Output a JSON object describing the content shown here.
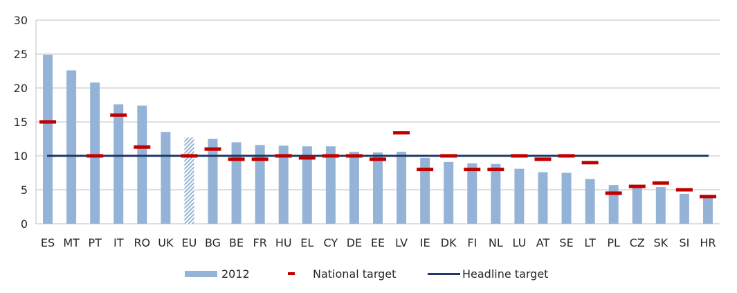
{
  "chart_data": {
    "type": "bar",
    "title": "",
    "xlabel": "",
    "ylabel": "",
    "ylim": [
      0,
      30
    ],
    "yticks": [
      0,
      5,
      10,
      15,
      20,
      25,
      30
    ],
    "grid": true,
    "legend_position": "bottom",
    "categories": [
      "ES",
      "MT",
      "PT",
      "IT",
      "RO",
      "UK",
      "EU",
      "BG",
      "BE",
      "FR",
      "HU",
      "EL",
      "CY",
      "DE",
      "EE",
      "LV",
      "IE",
      "DK",
      "FI",
      "NL",
      "LU",
      "AT",
      "SE",
      "LT",
      "PL",
      "CZ",
      "SK",
      "SI",
      "HR"
    ],
    "series": [
      {
        "name": "2012",
        "kind": "bar",
        "color": "#95b3d7",
        "highlight": {
          "category": "EU",
          "pattern": "hatched"
        },
        "values": [
          24.9,
          22.6,
          20.8,
          17.6,
          17.4,
          13.5,
          12.7,
          12.5,
          12.0,
          11.6,
          11.5,
          11.4,
          11.4,
          10.6,
          10.5,
          10.6,
          9.7,
          9.1,
          8.9,
          8.8,
          8.1,
          7.6,
          7.5,
          6.6,
          5.7,
          5.5,
          5.4,
          4.4,
          4.2
        ]
      },
      {
        "name": "National target",
        "kind": "marker",
        "color": "#c00000",
        "values": [
          15,
          null,
          10,
          16,
          11.3,
          null,
          10,
          11,
          9.5,
          9.5,
          10,
          9.7,
          10,
          10,
          9.5,
          13.4,
          8,
          10,
          8,
          8,
          10,
          9.5,
          10,
          9,
          4.5,
          5.5,
          6,
          5,
          4
        ]
      },
      {
        "name": "Headline target",
        "kind": "line",
        "color": "#1f3864",
        "value": 10
      }
    ]
  }
}
